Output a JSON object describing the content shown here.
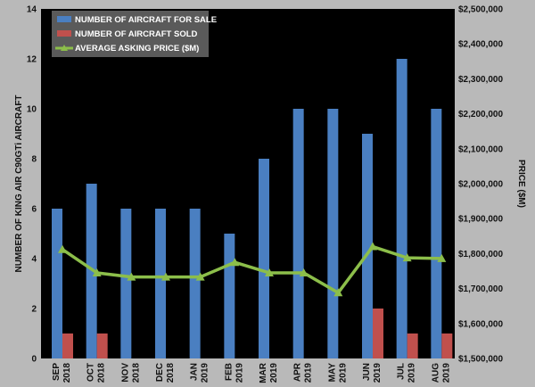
{
  "chart_data": {
    "type": "bar",
    "categories": [
      [
        "SEP",
        "2018"
      ],
      [
        "OCT",
        "2018"
      ],
      [
        "NOV",
        "2018"
      ],
      [
        "DEC",
        "2018"
      ],
      [
        "JAN",
        "2019"
      ],
      [
        "FEB",
        "2019"
      ],
      [
        "MAR",
        "2019"
      ],
      [
        "APR",
        "2019"
      ],
      [
        "MAY",
        "2019"
      ],
      [
        "JUN",
        "2019"
      ],
      [
        "JUL",
        "2019"
      ],
      [
        "AUG",
        "2019"
      ]
    ],
    "series": [
      {
        "name": "NUMBER OF AIRCRAFT FOR SALE",
        "type": "bar",
        "axis": "left",
        "color": "#4a7fc1",
        "values": [
          6,
          7,
          6,
          6,
          6,
          5,
          8,
          10,
          10,
          9,
          12,
          10
        ]
      },
      {
        "name": "NUMBER OF AIRCRAFT SOLD",
        "type": "bar",
        "axis": "left",
        "color": "#c0504d",
        "values": [
          1,
          1,
          0,
          0,
          0,
          0,
          0,
          0,
          0,
          2,
          1,
          1
        ]
      },
      {
        "name": "AVERAGE ASKING PRICE ($M)",
        "type": "line",
        "axis": "right",
        "color": "#8cbe4a",
        "values": [
          1812000,
          1745000,
          1733000,
          1733000,
          1733000,
          1775000,
          1745000,
          1745000,
          1688000,
          1820000,
          1788000,
          1786000
        ]
      }
    ],
    "ylabel": "NUMBER OF KING AIR C90GTi AIRCRAFT",
    "y2label": "PRICE ($M)",
    "ylim": [
      0,
      14
    ],
    "y2lim": [
      1500000,
      2500000
    ],
    "yticks": [
      0,
      2,
      4,
      6,
      8,
      10,
      12,
      14
    ],
    "y2ticks": [
      "$1,500,000",
      "$1,600,000",
      "$1,700,000",
      "$1,800,000",
      "$1,900,000",
      "$2,000,000",
      "$2,100,000",
      "$2,200,000",
      "$2,300,000",
      "$2,400,000",
      "$2,500,000"
    ],
    "legend_position": "top-left",
    "grid": false,
    "colors": {
      "plot_background": "#000000",
      "page_background": "#b9b9b9",
      "legend_background": "#5a5a5a"
    }
  }
}
